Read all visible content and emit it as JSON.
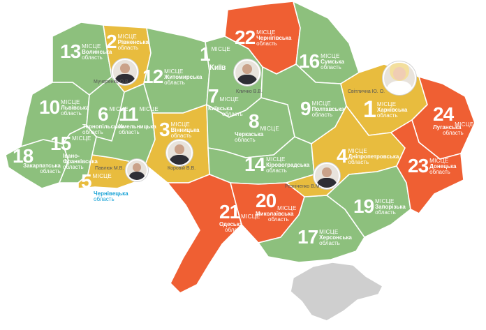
{
  "colors": {
    "green": "#8dc07d",
    "yellow": "#e8bc3e",
    "orange": "#ef5f33",
    "crimea": "#cfcfcf",
    "label_blue": "#1aa3d6"
  },
  "place_word": "МІСЦЕ",
  "oblast_word": "область",
  "regions": [
    {
      "id": "zakarpatska",
      "rank": "18",
      "name": "Закарпатська",
      "color": "green"
    },
    {
      "id": "lvivska",
      "rank": "10",
      "name": "Львівська",
      "color": "green"
    },
    {
      "id": "volynska",
      "rank": "13",
      "name": "Волинська",
      "color": "green"
    },
    {
      "id": "rivnenska",
      "rank": "2",
      "name": "Рівненська",
      "color": "yellow"
    },
    {
      "id": "ivano-frankivska",
      "rank": "15",
      "name": "Івано-Франківська",
      "color": "green"
    },
    {
      "id": "ternopilska",
      "rank": "6",
      "name": "Тернопільська",
      "color": "green"
    },
    {
      "id": "chernivetska",
      "rank": "5",
      "name": "Чернівецька",
      "color": "yellow"
    },
    {
      "id": "khmelnytska",
      "rank": "11",
      "name": "Хмельницька",
      "color": "green"
    },
    {
      "id": "zhytomyrska",
      "rank": "12",
      "name": "Житомирська",
      "color": "green"
    },
    {
      "id": "vinnytska",
      "rank": "3",
      "name": "Вінницька",
      "color": "yellow"
    },
    {
      "id": "kyivska",
      "rank": "7",
      "name": "Київська",
      "color": "green"
    },
    {
      "id": "cherkaska",
      "rank": "8",
      "name": "Черкаська",
      "color": "green"
    },
    {
      "id": "kirovohradska",
      "rank": "14",
      "name": "Кіровоградська",
      "color": "green"
    },
    {
      "id": "odeska",
      "rank": "21",
      "name": "Одеська",
      "color": "orange"
    },
    {
      "id": "mykolaivska",
      "rank": "20",
      "name": "Миколаївська",
      "color": "orange"
    },
    {
      "id": "khersonska",
      "rank": "17",
      "name": "Херсонська",
      "color": "green"
    },
    {
      "id": "chernihivska",
      "rank": "22",
      "name": "Чернігівська",
      "color": "orange"
    },
    {
      "id": "sumska",
      "rank": "16",
      "name": "Сумська",
      "color": "green"
    },
    {
      "id": "poltavska",
      "rank": "9",
      "name": "Полтавська",
      "color": "green"
    },
    {
      "id": "kharkivska",
      "rank": "1",
      "name": "Харківська",
      "color": "yellow"
    },
    {
      "id": "dnipropetrovska",
      "rank": "4",
      "name": "Дніпропетровська",
      "color": "yellow"
    },
    {
      "id": "zaporizka",
      "rank": "19",
      "name": "Запорізька",
      "color": "green"
    },
    {
      "id": "luhanska",
      "rank": "24",
      "name": "Луганська",
      "color": "orange"
    },
    {
      "id": "donetska",
      "rank": "23",
      "name": "Донецька",
      "color": "orange"
    }
  ],
  "kyiv": {
    "rank": "1",
    "name": "Київ"
  },
  "crimea": {
    "label": ""
  },
  "people": [
    {
      "id": "mucheryenko",
      "name": "Мучеренко О.В.",
      "region": "rivnenska"
    },
    {
      "id": "klychko",
      "name": "Кличко В.В.",
      "region": "kyiv"
    },
    {
      "id": "svitlychna",
      "name": "Світлична Ю. О.",
      "region": "kharkivska"
    },
    {
      "id": "korovii",
      "name": "Коровій В.В.",
      "region": "vinnytska"
    },
    {
      "id": "pavliuk",
      "name": "Павлюк М.В.",
      "region": "chernivetska"
    },
    {
      "id": "reznichenko",
      "name": "Резніченко В.М.",
      "region": "dnipropetrovska"
    }
  ]
}
